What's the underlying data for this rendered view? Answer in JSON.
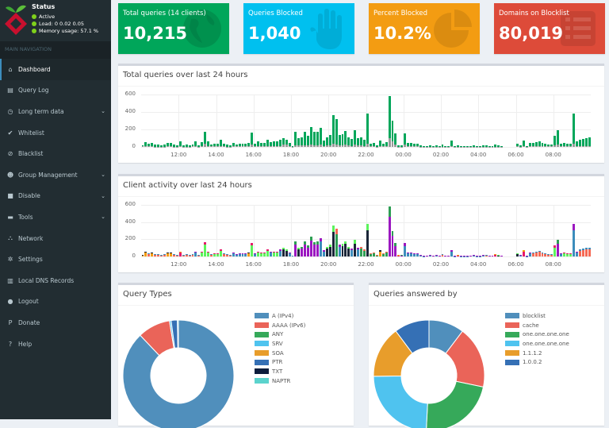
{
  "status": {
    "title": "Status",
    "items": [
      "Active",
      "Load:  0  0.02  0.05",
      "Memory usage:  57.1 %"
    ]
  },
  "nav": {
    "header": "MAIN NAVIGATION",
    "items": [
      {
        "label": "Dashboard",
        "icon": "home-icon",
        "active": true
      },
      {
        "label": "Query Log",
        "icon": "file-icon"
      },
      {
        "label": "Long term data",
        "icon": "clock-icon",
        "expand": true
      },
      {
        "label": "Whitelist",
        "icon": "check-circle-icon"
      },
      {
        "label": "Blacklist",
        "icon": "ban-icon"
      },
      {
        "label": "Group Management",
        "icon": "users-icon",
        "expand": true
      },
      {
        "label": "Disable",
        "icon": "stop-icon",
        "expand": true
      },
      {
        "label": "Tools",
        "icon": "folder-icon",
        "expand": true
      },
      {
        "label": "Network",
        "icon": "network-icon"
      },
      {
        "label": "Settings",
        "icon": "gears-icon"
      },
      {
        "label": "Local DNS Records",
        "icon": "address-book-icon"
      },
      {
        "label": "Logout",
        "icon": "user-icon"
      },
      {
        "label": "Donate",
        "icon": "paypal-icon"
      },
      {
        "label": "Help",
        "icon": "question-icon"
      }
    ]
  },
  "stats": [
    {
      "label": "Total queries (14 clients)",
      "value": "10,215",
      "color": "#00a65a",
      "icon": "globe-icon"
    },
    {
      "label": "Queries Blocked",
      "value": "1,040",
      "color": "#00c0ef",
      "icon": "hand-icon"
    },
    {
      "label": "Percent Blocked",
      "value": "10.2%",
      "color": "#f39c12",
      "icon": "pie-chart-icon"
    },
    {
      "label": "Domains on Blocklist",
      "value": "80,019",
      "color": "#dd4b39",
      "icon": "list-icon"
    }
  ],
  "chart_data": [
    {
      "type": "bar",
      "title": "Total queries over last 24 hours",
      "yticks": [
        "600",
        "400",
        "200",
        "0"
      ],
      "ylim": [
        0,
        600
      ],
      "xticks": [
        "12:00",
        "14:00",
        "16:00",
        "18:00",
        "20:00",
        "22:00",
        "00:00",
        "02:00",
        "04:00",
        "06:00",
        "08:00"
      ],
      "interval_minutes": 10,
      "start": "10:00",
      "series": [
        {
          "color": "#00a65a",
          "values": [
            20,
            55,
            40,
            45,
            25,
            25,
            20,
            25,
            45,
            50,
            25,
            15,
            60,
            20,
            25,
            20,
            30,
            60,
            20,
            55,
            170,
            60,
            30,
            35,
            40,
            85,
            40,
            25,
            20,
            50,
            30,
            35,
            35,
            35,
            50,
            160,
            40,
            60,
            50,
            45,
            85,
            55,
            60,
            60,
            80,
            100,
            80,
            50,
            10,
            175,
            100,
            110,
            175,
            125,
            230,
            170,
            175,
            215,
            75,
            110,
            135,
            360,
            320,
            135,
            145,
            180,
            110,
            95,
            190,
            100,
            110,
            85,
            380,
            40,
            45,
            20,
            75,
            40,
            55,
            580,
            300,
            155,
            20,
            20,
            155,
            45,
            45,
            35,
            35,
            20,
            5,
            10,
            15,
            10,
            15,
            10,
            25,
            10,
            10,
            70,
            5,
            20,
            5,
            5,
            5,
            10,
            15,
            5,
            5,
            15,
            15,
            10,
            10,
            25,
            15,
            10,
            0,
            0,
            0,
            0,
            35,
            15,
            75,
            5,
            45,
            45,
            55,
            65,
            45,
            35,
            30,
            30,
            130,
            190,
            40,
            50,
            40,
            40,
            380,
            60,
            85,
            95,
            100,
            105
          ]
        },
        {
          "color": "#999999",
          "values": [
            5,
            8,
            6,
            6,
            4,
            4,
            3,
            4,
            6,
            7,
            4,
            3,
            8,
            3,
            4,
            3,
            5,
            10,
            4,
            8,
            40,
            10,
            5,
            5,
            6,
            10,
            6,
            4,
            3,
            8,
            5,
            5,
            5,
            5,
            8,
            25,
            6,
            8,
            8,
            6,
            10,
            8,
            8,
            8,
            12,
            25,
            30,
            8,
            2,
            20,
            15,
            15,
            20,
            18,
            25,
            20,
            20,
            25,
            10,
            15,
            20,
            35,
            30,
            20,
            20,
            25,
            15,
            12,
            25,
            15,
            15,
            12,
            40,
            6,
            6,
            3,
            10,
            6,
            8,
            100,
            60,
            25,
            3,
            3,
            30,
            6,
            6,
            5,
            5,
            3,
            1,
            2,
            2,
            2,
            2,
            2,
            3,
            2,
            2,
            5,
            1,
            3,
            1,
            1,
            1,
            2,
            2,
            1,
            1,
            2,
            2,
            2,
            2,
            3,
            2,
            2,
            0,
            0,
            0,
            0,
            5,
            3,
            10,
            1,
            6,
            6,
            8,
            8,
            6,
            5,
            5,
            5,
            20,
            30,
            6,
            8,
            6,
            6,
            40,
            8,
            12,
            12,
            12,
            12
          ]
        }
      ]
    },
    {
      "type": "bar",
      "title": "Client activity over last 24 hours",
      "yticks": [
        "600",
        "400",
        "200",
        "0"
      ],
      "ylim": [
        0,
        600
      ],
      "xticks": [
        "12:00",
        "14:00",
        "16:00",
        "18:00",
        "20:00",
        "22:00",
        "00:00",
        "02:00",
        "04:00",
        "06:00",
        "08:00"
      ],
      "client_colors": [
        "#f56954",
        "#f39c12",
        "#3c8dbc",
        "#1a2538",
        "#9b17c0",
        "#5cf35c",
        "#2e9e54",
        "#e6196b"
      ],
      "values": [
        20,
        55,
        40,
        45,
        25,
        25,
        20,
        25,
        45,
        50,
        25,
        15,
        60,
        20,
        25,
        20,
        30,
        60,
        20,
        55,
        170,
        60,
        30,
        35,
        40,
        85,
        40,
        25,
        20,
        50,
        30,
        35,
        35,
        35,
        50,
        160,
        40,
        60,
        50,
        45,
        85,
        55,
        60,
        60,
        80,
        100,
        80,
        50,
        10,
        175,
        100,
        110,
        175,
        125,
        230,
        170,
        175,
        215,
        75,
        110,
        135,
        360,
        320,
        135,
        145,
        180,
        110,
        95,
        190,
        100,
        110,
        85,
        380,
        40,
        45,
        20,
        75,
        40,
        55,
        580,
        300,
        155,
        20,
        20,
        155,
        45,
        45,
        35,
        35,
        20,
        5,
        10,
        15,
        10,
        15,
        10,
        25,
        10,
        10,
        70,
        5,
        20,
        5,
        5,
        5,
        10,
        15,
        5,
        5,
        15,
        15,
        10,
        10,
        25,
        15,
        10,
        0,
        0,
        0,
        0,
        35,
        15,
        75,
        5,
        45,
        45,
        55,
        65,
        45,
        35,
        30,
        30,
        130,
        190,
        40,
        50,
        40,
        40,
        380,
        60,
        85,
        95,
        100,
        105
      ],
      "main_client": [
        1,
        1,
        0,
        1,
        0,
        0,
        0,
        0,
        1,
        1,
        0,
        0,
        7,
        0,
        0,
        0,
        0,
        2,
        0,
        5,
        5,
        5,
        0,
        5,
        5,
        5,
        0,
        0,
        0,
        2,
        2,
        2,
        2,
        2,
        1,
        5,
        2,
        5,
        5,
        5,
        5,
        2,
        5,
        5,
        2,
        3,
        3,
        2,
        0,
        4,
        3,
        4,
        4,
        4,
        4,
        4,
        4,
        2,
        2,
        3,
        3,
        3,
        6,
        2,
        3,
        3,
        3,
        2,
        3,
        2,
        6,
        6,
        3,
        6,
        6,
        6,
        1,
        6,
        6,
        4,
        4,
        4,
        7,
        4,
        2,
        2,
        2,
        2,
        2,
        2,
        2,
        2,
        2,
        2,
        2,
        2,
        0,
        2,
        2,
        2,
        2,
        7,
        2,
        2,
        2,
        2,
        2,
        2,
        2,
        2,
        0,
        2,
        2,
        7,
        3,
        2,
        2,
        2,
        2,
        2,
        3,
        2,
        7,
        2,
        2,
        0,
        0,
        0,
        0,
        0,
        0,
        0,
        5,
        4,
        2,
        5,
        5,
        5,
        2,
        2,
        0,
        0,
        0,
        0
      ]
    },
    {
      "type": "pie",
      "title": "Query Types",
      "labels": [
        "A (IPv4)",
        "AAAA (IPv6)",
        "ANY",
        "SRV",
        "SOA",
        "PTR",
        "TXT",
        "NAPTR"
      ],
      "values": [
        87.9,
        9.5,
        0,
        0.5,
        0,
        1.8,
        0,
        0.3
      ],
      "colors": [
        "#508fbc",
        "#ea6459",
        "#36a95a",
        "#4fc3ef",
        "#e89d2b",
        "#3570b5",
        "#0d1d3c",
        "#5bd3cd"
      ]
    },
    {
      "type": "pie",
      "title": "Queries answered by",
      "labels": [
        "blocklist",
        "cache",
        "one.one.one.one",
        "one.one.one.one",
        "1.1.1.2",
        "1.0.0.2"
      ],
      "values": [
        10.3,
        18,
        22.5,
        24,
        15,
        10.2
      ],
      "colors": [
        "#508fbc",
        "#ea6459",
        "#36a95a",
        "#4fc3ef",
        "#e89d2b",
        "#3570b5"
      ]
    }
  ]
}
